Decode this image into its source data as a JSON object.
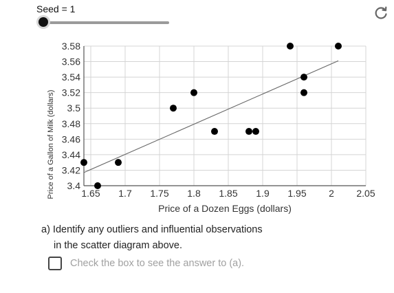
{
  "seed": {
    "label": "Seed = 1",
    "value": 1
  },
  "chart_data": {
    "type": "scatter",
    "xlabel": "Price of a Dozen Eggs (dollars)",
    "ylabel": "Price of a Gallon of Milk (dollars)",
    "xlim": [
      1.64,
      2.05
    ],
    "ylim": [
      3.4,
      3.58
    ],
    "x_ticks": [
      "1.65",
      "1.7",
      "1.75",
      "1.8",
      "1.85",
      "1.9",
      "1.95",
      "2",
      "2.05"
    ],
    "y_ticks": [
      "3.4",
      "3.42",
      "3.44",
      "3.46",
      "3.48",
      "3.5",
      "3.52",
      "3.54",
      "3.56",
      "3.58"
    ],
    "grid": true,
    "points": [
      {
        "x": 1.64,
        "y": 3.43
      },
      {
        "x": 1.66,
        "y": 3.4
      },
      {
        "x": 1.69,
        "y": 3.43
      },
      {
        "x": 1.77,
        "y": 3.5
      },
      {
        "x": 1.8,
        "y": 3.52
      },
      {
        "x": 1.83,
        "y": 3.47
      },
      {
        "x": 1.88,
        "y": 3.47
      },
      {
        "x": 1.89,
        "y": 3.47
      },
      {
        "x": 1.94,
        "y": 3.58
      },
      {
        "x": 1.96,
        "y": 3.54
      },
      {
        "x": 1.96,
        "y": 3.52
      },
      {
        "x": 2.01,
        "y": 3.58
      }
    ],
    "regression_line": {
      "x1": 1.64,
      "y1": 3.417,
      "x2": 2.01,
      "y2": 3.561
    }
  },
  "question": {
    "line1": "a) Identify any outliers and influential observations",
    "line2": "in the scatter diagram above."
  },
  "checkbox": {
    "label": "Check the box to see the answer to (a).",
    "checked": false
  }
}
